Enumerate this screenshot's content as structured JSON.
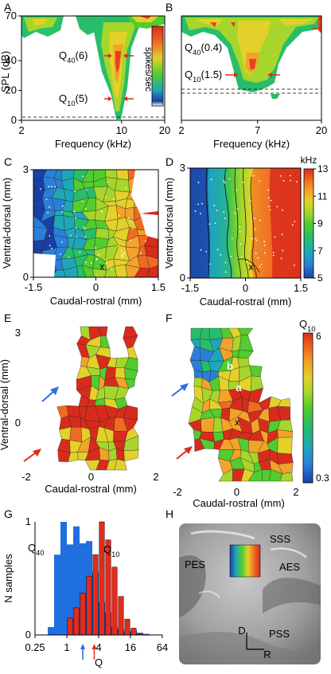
{
  "chart_data": [
    {
      "panel": "A",
      "type": "heatmap",
      "description_key": "frequency-response-area",
      "xlabel": "Frequency (kHz)",
      "ylabel": "SPL (dB)",
      "xticks": [
        "2",
        "10",
        "20"
      ],
      "xtick_values": [
        2,
        10,
        20
      ],
      "yticks": [
        "0",
        "20",
        "40",
        "70"
      ],
      "ytick_values": [
        0,
        20,
        40,
        70
      ],
      "xscale": "log",
      "xlim": [
        2,
        20
      ],
      "ylim": [
        0,
        70
      ],
      "colorbar_label": "spikes/sec",
      "annotations": [
        {
          "base": "Q",
          "sub": "40",
          "rest": "(6)",
          "level_db": 40
        },
        {
          "base": "Q",
          "sub": "10",
          "rest": "(5)",
          "level_db": 10
        }
      ],
      "best_frequency_khz": 10
    },
    {
      "panel": "B",
      "type": "heatmap",
      "description_key": "frequency-response-area",
      "xlabel": "Frequency (kHz)",
      "xticks": [
        "2",
        "7",
        "20"
      ],
      "xtick_values": [
        2,
        7,
        20
      ],
      "xscale": "log",
      "xlim": [
        2,
        20
      ],
      "ylim": [
        0,
        70
      ],
      "annotations": [
        {
          "base": "Q",
          "sub": "40",
          "rest": "(0.4)",
          "level_db": 58
        },
        {
          "base": "Q",
          "sub": "10",
          "rest": "(1.5)",
          "level_db": 36
        }
      ],
      "best_frequency_khz": 7
    },
    {
      "panel": "C",
      "type": "heatmap",
      "description_key": "voronoi-cf-map",
      "xlabel": "Caudal-rostral (mm)",
      "ylabel": "Ventral-dorsal (mm)",
      "xticks": [
        "-1.5",
        "0",
        "1.5"
      ],
      "xtick_values": [
        -1.5,
        0,
        1.5
      ],
      "yticks": [
        "0",
        "3"
      ],
      "ytick_values": [
        0,
        3
      ],
      "xlim": [
        -1.5,
        1.5
      ],
      "ylim": [
        0,
        3
      ],
      "marker": "x"
    },
    {
      "panel": "D",
      "type": "heatmap",
      "description_key": "interpolated-cf-map",
      "xlabel": "Caudal-rostral (mm)",
      "ylabel": "Ventral-dorsal (mm)",
      "xticks": [
        "-1.5",
        "0",
        "1.5"
      ],
      "xtick_values": [
        -1.5,
        0,
        1.5
      ],
      "yticks": [
        "0",
        "3"
      ],
      "ytick_values": [
        0,
        3
      ],
      "xlim": [
        -1.5,
        1.5
      ],
      "ylim": [
        0,
        3
      ],
      "marker": "x",
      "colorbar_unit": "kHz",
      "colorbar_ticks": [
        "13",
        "11",
        "9",
        "7",
        "5"
      ],
      "colorbar_values": [
        13,
        11,
        9,
        7,
        5
      ]
    },
    {
      "panel": "E",
      "type": "heatmap",
      "description_key": "voronoi-q40-map",
      "xlabel": "Caudal-rostral (mm)",
      "ylabel": "Ventral-dorsal (mm)",
      "xticks": [
        "-2",
        "0",
        "2"
      ],
      "xtick_values": [
        -2,
        0,
        2
      ],
      "yticks": [
        "0",
        "3"
      ],
      "ytick_values": [
        0,
        3
      ],
      "xlim": [
        -2,
        2
      ],
      "ylim": [
        -2,
        3
      ]
    },
    {
      "panel": "F",
      "type": "heatmap",
      "description_key": "voronoi-q10-map",
      "xlabel": "Caudal-rostral (mm)",
      "xticks": [
        "-2",
        "0",
        "2"
      ],
      "xtick_values": [
        -2,
        0,
        2
      ],
      "xlim": [
        -2,
        2
      ],
      "ylim": [
        -2,
        3
      ],
      "marker": "x",
      "labels": [
        "a",
        "b"
      ],
      "colorbar_title": {
        "base": "Q",
        "sub": "10"
      },
      "colorbar_ticks": [
        "6",
        "0.3"
      ],
      "colorbar_values": [
        6,
        0.3
      ]
    },
    {
      "panel": "G",
      "type": "bar",
      "description_key": "q-histogram",
      "xlabel": "Q",
      "ylabel": "N samples",
      "xticks": [
        "0.25",
        "1",
        "4",
        "16",
        "64"
      ],
      "xtick_values": [
        0.25,
        1,
        4,
        16,
        64
      ],
      "xscale": "log",
      "xlim": [
        0.25,
        64
      ],
      "yticks": [
        "0",
        "1"
      ],
      "ytick_values": [
        0,
        1
      ],
      "ylim": [
        0,
        1
      ],
      "bin_edges_log2": [
        -1.2,
        -0.8,
        -0.4,
        0.0,
        0.4,
        0.8,
        1.2,
        1.6,
        2.0,
        2.4,
        2.8,
        3.2,
        3.6,
        4.0,
        4.4,
        4.8,
        5.2
      ],
      "series": [
        {
          "label": {
            "base": "Q",
            "sub": "40"
          },
          "color": "#1f6fe0",
          "values": [
            0.07,
            0.71,
            1.0,
            0.8,
            0.96,
            0.81,
            0.83,
            0.56,
            0.29,
            0.2,
            0.07,
            0.05,
            0.03,
            0.04,
            0.02,
            0.01
          ]
        },
        {
          "label": {
            "base": "Q",
            "sub": "10"
          },
          "color": "#e52a1c",
          "values": [
            0.0,
            0.0,
            0.0,
            0.15,
            0.24,
            0.37,
            0.52,
            0.71,
            1.0,
            0.84,
            0.6,
            0.34,
            0.14,
            0.06,
            0.01,
            0.0
          ]
        }
      ],
      "medians": [
        {
          "series": 0,
          "q": 2.0,
          "color": "#1f6fe0"
        },
        {
          "series": 1,
          "q": 3.3,
          "color": "#e52a1c"
        }
      ]
    }
  ],
  "panel_h": {
    "panel": "H",
    "labels": [
      "SSS",
      "PES",
      "AES",
      "PSS",
      "D",
      "R"
    ]
  },
  "panel_letters": [
    "A",
    "B",
    "C",
    "D",
    "E",
    "F",
    "G",
    "H"
  ],
  "colors": {
    "colormap": [
      "#1a3fa6",
      "#2b7fd8",
      "#1fa7b8",
      "#28bd6a",
      "#52cc2e",
      "#a6d62b",
      "#e2d12a",
      "#f3a22a",
      "#f06a22",
      "#d92b1b"
    ],
    "blue_arrow": "#2d6fe0",
    "red_arrow": "#e02a1c"
  }
}
